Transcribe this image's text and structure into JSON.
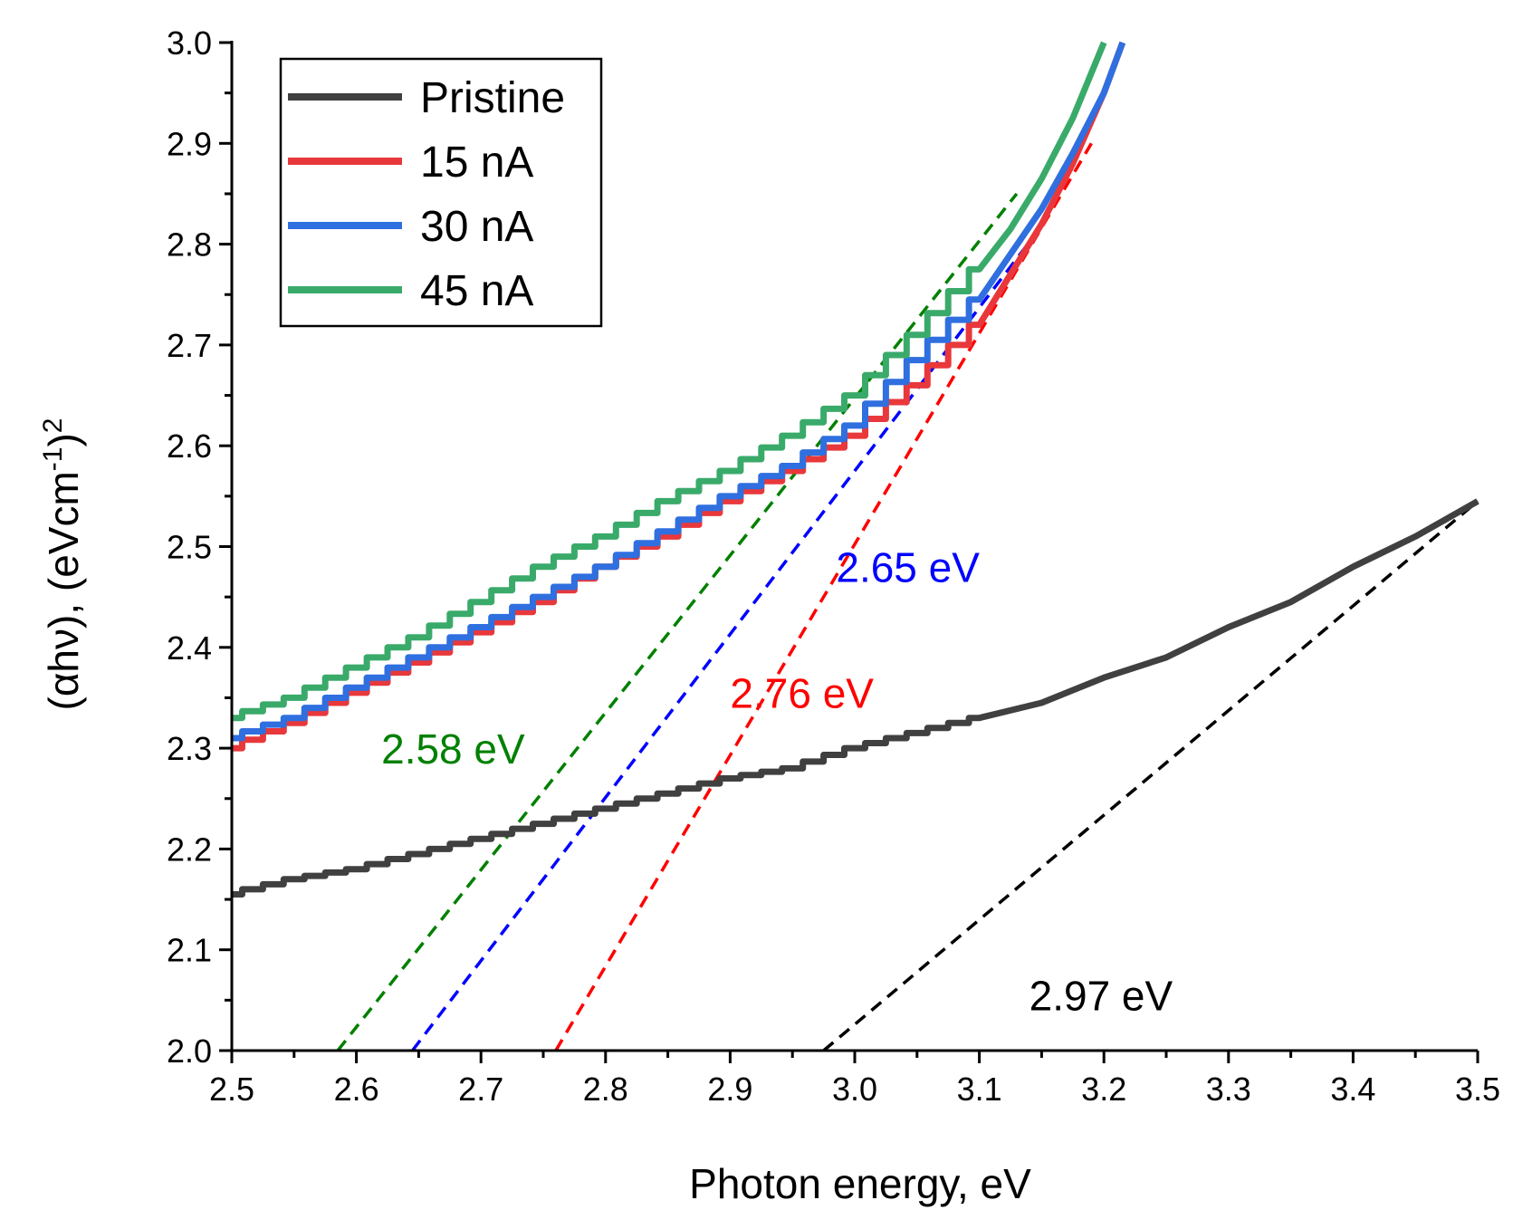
{
  "chart_data": {
    "type": "line",
    "title": "",
    "xlabel": "Photon energy, eV",
    "ylabel": "(αhν), (eVcm",
    "ylabel_sup1": "-1",
    "ylabel_close": ")",
    "ylabel_sup2": "2",
    "xlim": [
      2.5,
      3.5
    ],
    "ylim": [
      2.0,
      3.0
    ],
    "x_ticks": [
      2.5,
      2.6,
      2.7,
      2.8,
      2.9,
      3.0,
      3.1,
      3.2,
      3.3,
      3.4,
      3.5
    ],
    "x_tick_labels": [
      "2.5",
      "2.6",
      "2.7",
      "2.8",
      "2.9",
      "3.0",
      "3.1",
      "3.2",
      "3.3",
      "3.4",
      "3.5"
    ],
    "y_ticks": [
      2.0,
      2.1,
      2.2,
      2.3,
      2.4,
      2.5,
      2.6,
      2.7,
      2.8,
      2.9,
      3.0
    ],
    "y_tick_labels": [
      "2.0",
      "2.1",
      "2.2",
      "2.3",
      "2.4",
      "2.5",
      "2.6",
      "2.7",
      "2.8",
      "2.9",
      "3.0"
    ],
    "grid": false,
    "legend_position": "top-left",
    "series": [
      {
        "name": "Pristine",
        "color": "#404040",
        "x": [
          2.5,
          2.55,
          2.6,
          2.65,
          2.7,
          2.75,
          2.8,
          2.85,
          2.9,
          2.95,
          3.0,
          3.05,
          3.1,
          3.15,
          3.2,
          3.25,
          3.3,
          3.35,
          3.4,
          3.45,
          3.5
        ],
        "y": [
          2.155,
          2.17,
          2.18,
          2.195,
          2.21,
          2.225,
          2.24,
          2.255,
          2.27,
          2.28,
          2.3,
          2.315,
          2.33,
          2.345,
          2.37,
          2.39,
          2.42,
          2.445,
          2.48,
          2.51,
          2.545
        ]
      },
      {
        "name": "15 nA",
        "color": "#e8383b",
        "x": [
          2.5,
          2.55,
          2.6,
          2.65,
          2.7,
          2.75,
          2.8,
          2.85,
          2.9,
          2.95,
          3.0,
          3.05,
          3.1,
          3.125,
          3.15,
          3.175,
          3.2,
          3.215
        ],
        "y": [
          2.3,
          2.325,
          2.355,
          2.385,
          2.415,
          2.445,
          2.48,
          2.51,
          2.545,
          2.575,
          2.61,
          2.66,
          2.72,
          2.77,
          2.82,
          2.88,
          2.95,
          3.0
        ]
      },
      {
        "name": "30 nA",
        "color": "#2f6fdf",
        "x": [
          2.5,
          2.55,
          2.6,
          2.65,
          2.7,
          2.75,
          2.8,
          2.85,
          2.9,
          2.95,
          3.0,
          3.05,
          3.1,
          3.125,
          3.15,
          3.175,
          3.2,
          3.215
        ],
        "y": [
          2.31,
          2.33,
          2.36,
          2.39,
          2.42,
          2.45,
          2.48,
          2.515,
          2.55,
          2.58,
          2.62,
          2.685,
          2.745,
          2.79,
          2.835,
          2.89,
          2.95,
          3.0
        ]
      },
      {
        "name": "45 nA",
        "color": "#3aaa6a",
        "x": [
          2.5,
          2.55,
          2.6,
          2.65,
          2.7,
          2.75,
          2.8,
          2.85,
          2.9,
          2.95,
          3.0,
          3.05,
          3.1,
          3.125,
          3.15,
          3.175,
          3.2
        ],
        "y": [
          2.33,
          2.35,
          2.38,
          2.41,
          2.445,
          2.48,
          2.51,
          2.545,
          2.575,
          2.61,
          2.65,
          2.71,
          2.775,
          2.815,
          2.865,
          2.925,
          3.0
        ]
      }
    ],
    "fit_lines": [
      {
        "name": "Pristine fit",
        "color": "#000000",
        "x": [
          2.975,
          3.5
        ],
        "y": [
          2.0,
          2.545
        ]
      },
      {
        "name": "15 nA fit",
        "color": "#ff0000",
        "x": [
          2.76,
          3.19
        ],
        "y": [
          2.0,
          2.9
        ]
      },
      {
        "name": "30 nA fit",
        "color": "#0000ff",
        "x": [
          2.645,
          3.145
        ],
        "y": [
          2.0,
          2.81
        ]
      },
      {
        "name": "45 nA fit",
        "color": "#008000",
        "x": [
          2.585,
          3.13
        ],
        "y": [
          2.0,
          2.85
        ]
      }
    ],
    "annotations": [
      {
        "text": "2.58 eV",
        "color": "#008000",
        "x": 2.62,
        "y": 2.285
      },
      {
        "text": "2.65 eV",
        "color": "#0000ff",
        "x": 2.985,
        "y": 2.465
      },
      {
        "text": "2.76 eV",
        "color": "#ff0000",
        "x": 2.9,
        "y": 2.34
      },
      {
        "text": "2.97 eV",
        "color": "#000000",
        "x": 3.14,
        "y": 2.04
      }
    ]
  }
}
